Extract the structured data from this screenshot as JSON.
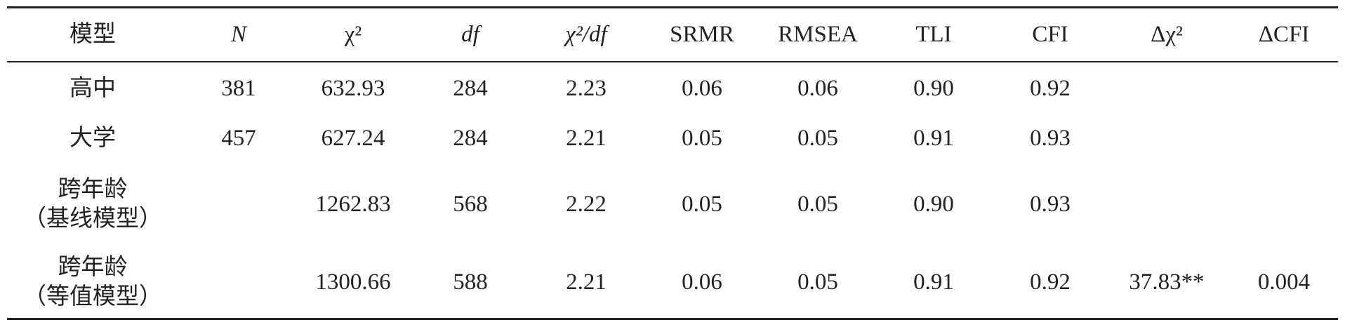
{
  "table": {
    "header": [
      "模型",
      "N",
      "χ²",
      "df",
      "χ²/df",
      "SRMR",
      "RMSEA",
      "TLI",
      "CFI",
      "Δχ²",
      "ΔCFI"
    ],
    "rows": [
      [
        [
          "高中"
        ],
        "381",
        "632.93",
        "284",
        "2.23",
        "0.06",
        "0.06",
        "0.90",
        "0.92",
        null,
        null
      ],
      [
        [
          "大学"
        ],
        "457",
        "627.24",
        "284",
        "2.21",
        "0.05",
        "0.05",
        "0.91",
        "0.93",
        null,
        null
      ],
      [
        [
          "跨年龄",
          "（基线模型）"
        ],
        null,
        "1262.83",
        "568",
        "2.22",
        "0.05",
        "0.05",
        "0.90",
        "0.93",
        null,
        null
      ],
      [
        [
          "跨年龄",
          "（等值模型）"
        ],
        null,
        "1300.66",
        "588",
        "2.21",
        "0.06",
        "0.05",
        "0.91",
        "0.92",
        "37.83**",
        "0.004"
      ]
    ]
  }
}
